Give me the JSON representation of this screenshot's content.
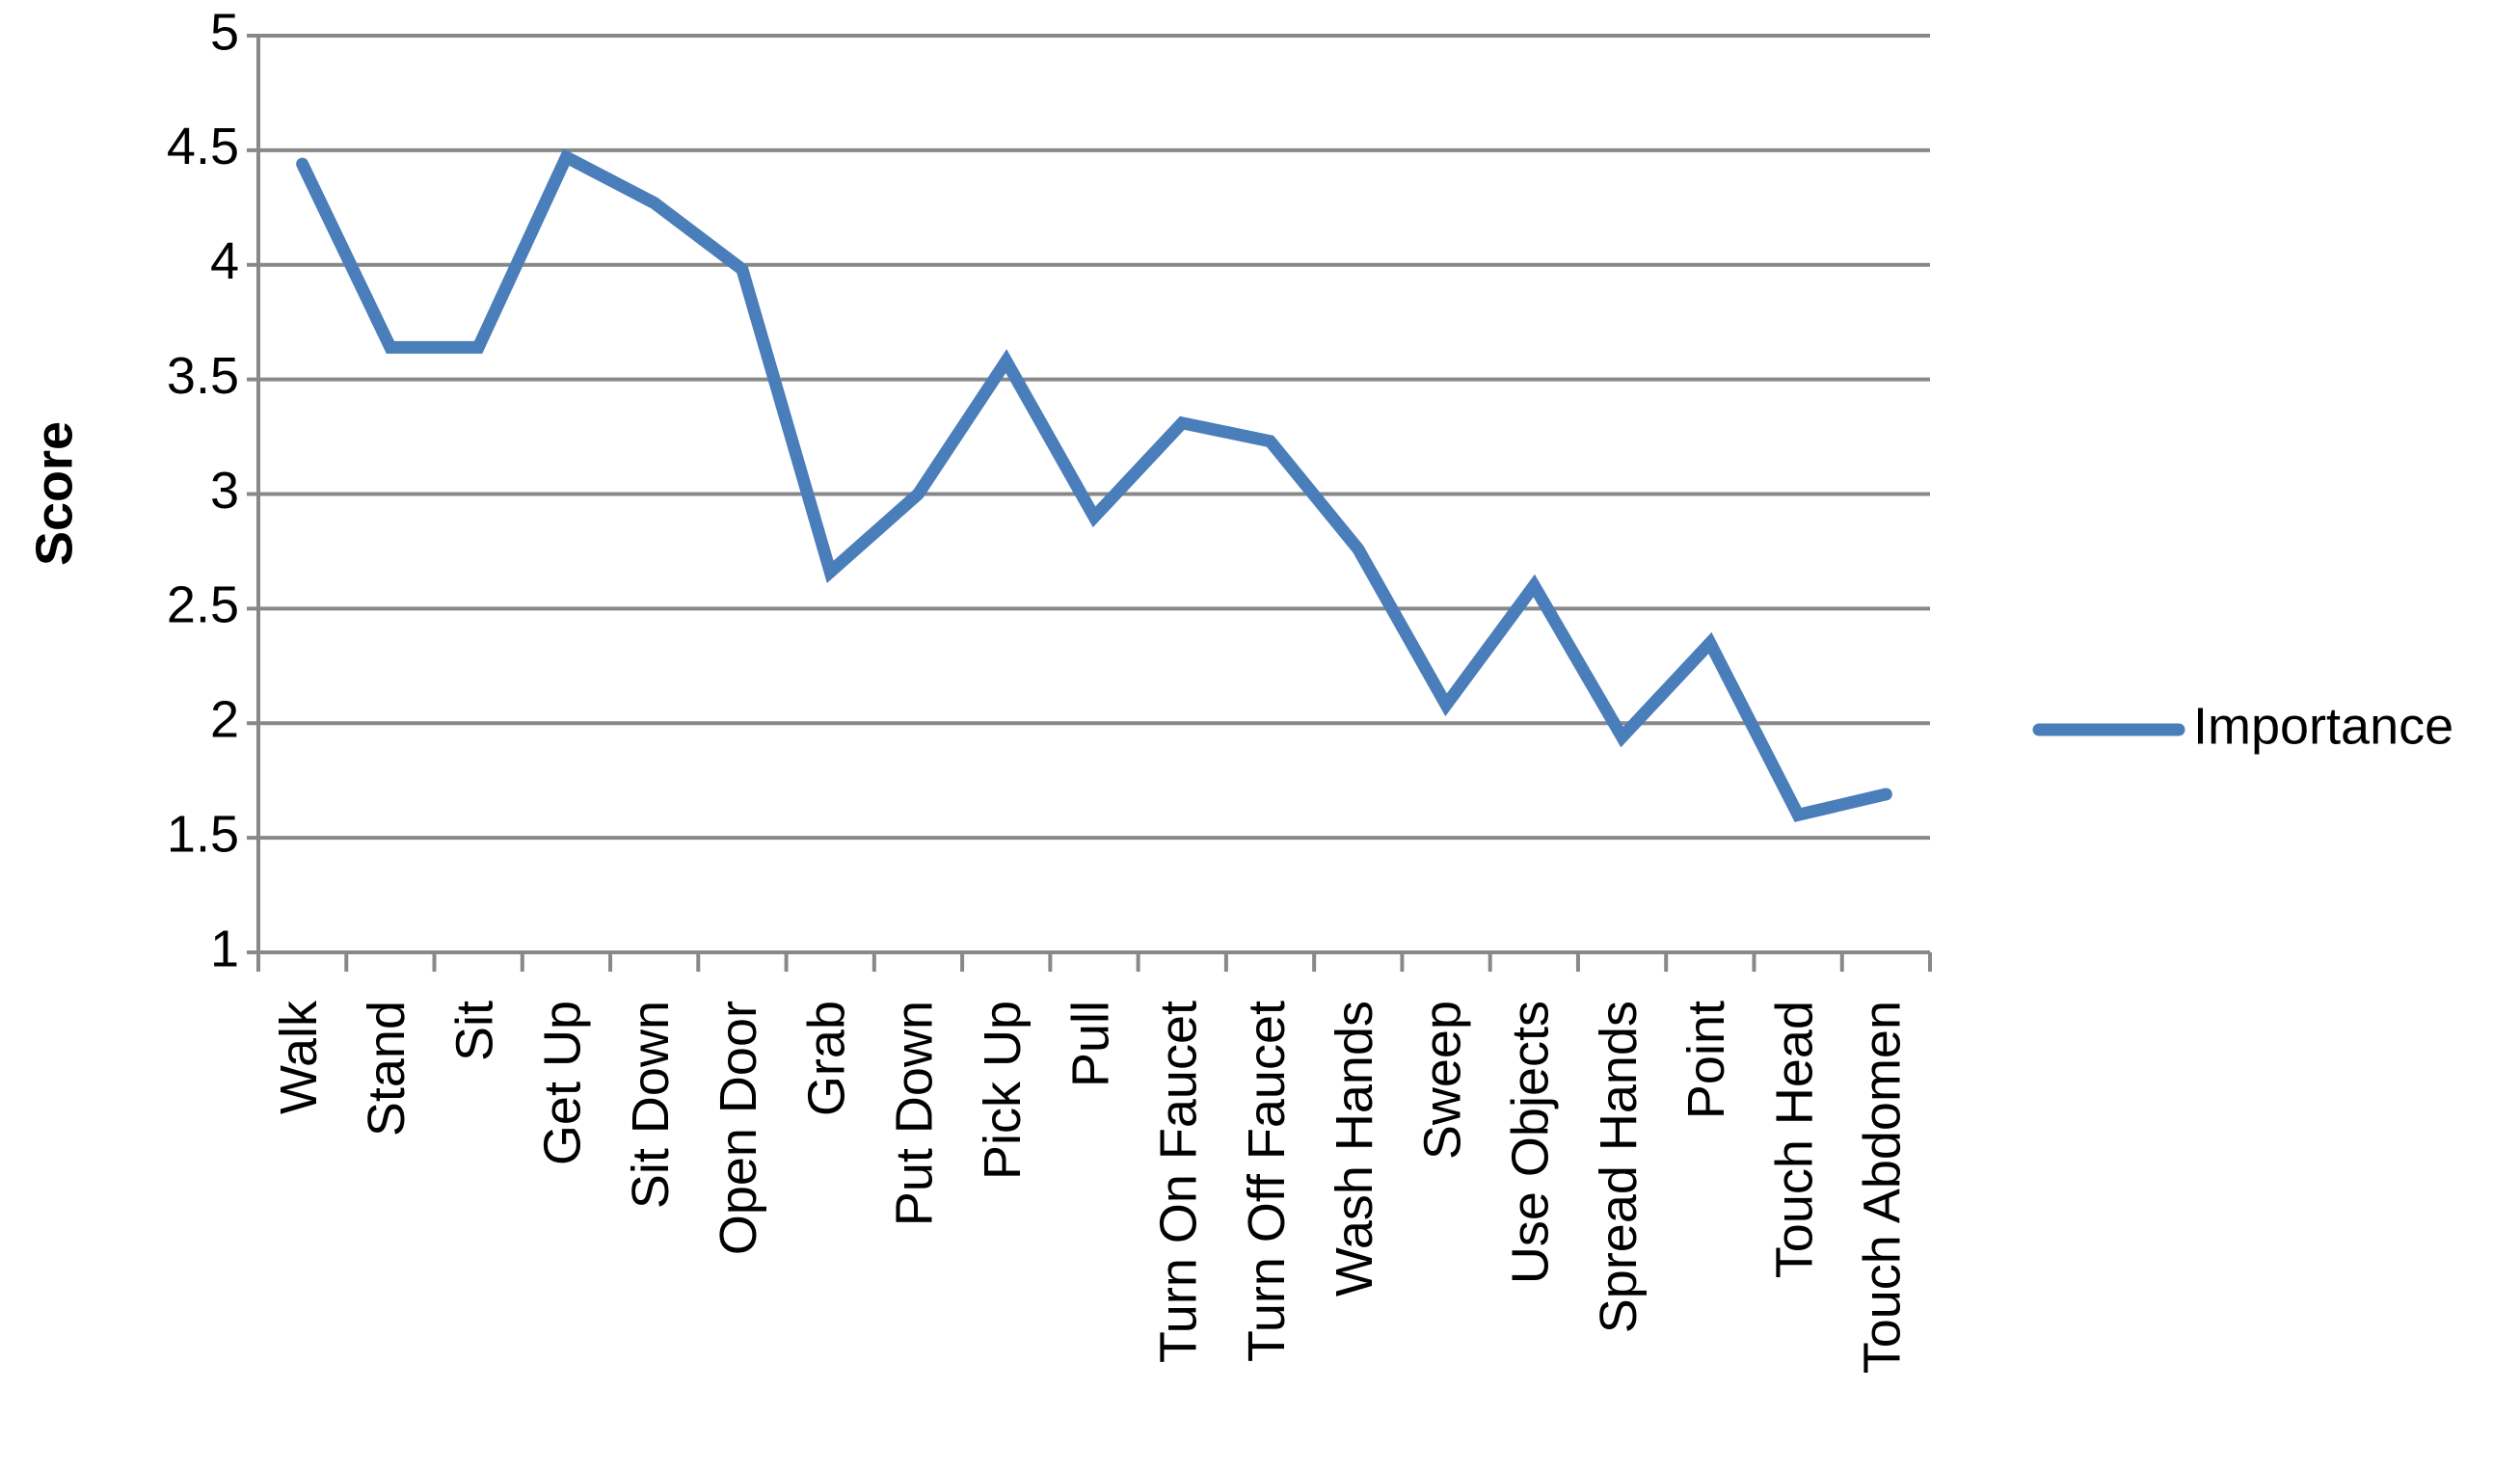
{
  "chart_data": {
    "type": "line",
    "y_label": "Score",
    "categories": [
      "Walk",
      "Stand",
      "Sit",
      "Get Up",
      "Sit Down",
      "Open Door",
      "Grab",
      "Put Down",
      "Pick Up",
      "Pull",
      "Turn On Faucet",
      "Turn Off Faucet",
      "Wash Hands",
      "Sweep",
      "Use Objects",
      "Spread Hands",
      "Point",
      "Touch Head",
      "Touch Abdomen"
    ],
    "series": [
      {
        "name": "Importance",
        "color": "#4a7ebb",
        "values": [
          4.44,
          3.64,
          3.64,
          4.47,
          4.27,
          3.98,
          2.66,
          3.0,
          3.58,
          2.9,
          3.31,
          3.23,
          2.76,
          2.08,
          2.6,
          1.94,
          2.35,
          1.6,
          1.69
        ]
      }
    ],
    "ylim": [
      1,
      5
    ],
    "yticks": [
      1,
      1.5,
      2,
      2.5,
      3,
      3.5,
      4,
      4.5,
      5
    ],
    "grid": true,
    "legend": "right"
  }
}
